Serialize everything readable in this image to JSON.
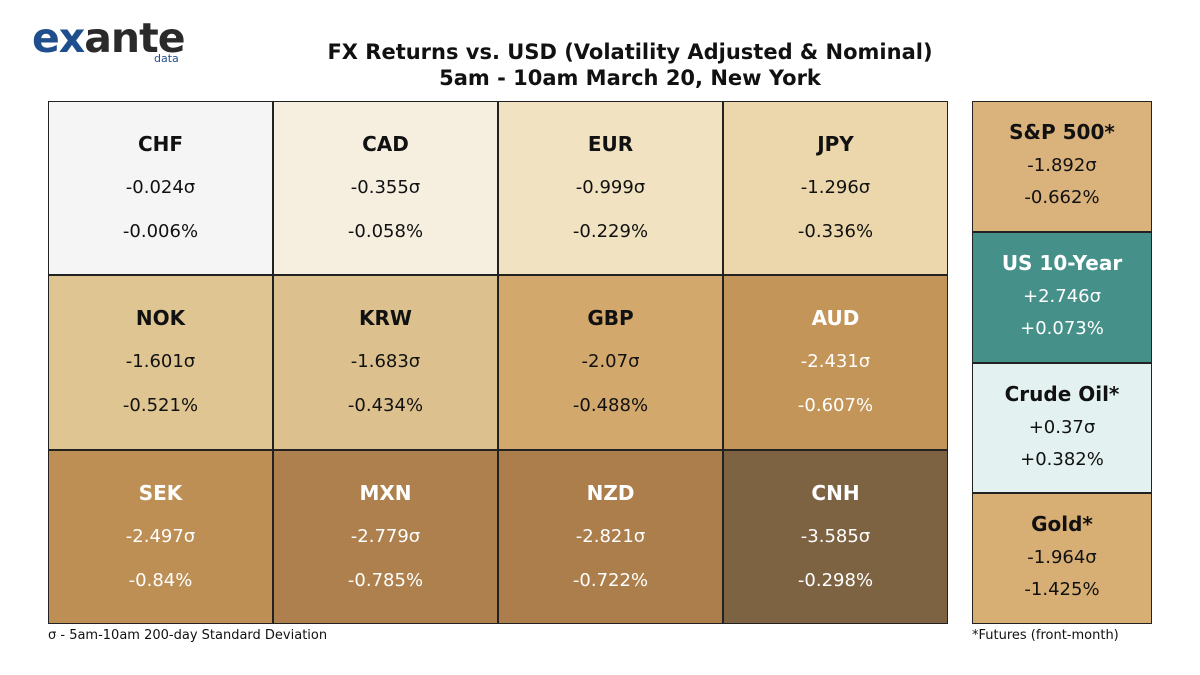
{
  "logo": {
    "word_ex": "ex",
    "word_ante": "ante",
    "sub": "data"
  },
  "title": {
    "line1": "FX Returns vs. USD (Volatility Adjusted & Nominal)",
    "line2": "5am - 10am March 20, New York"
  },
  "chart_data": {
    "type": "table",
    "title": "FX Returns vs. USD (Volatility Adjusted & Nominal)",
    "subtitle": "5am - 10am March 20, New York",
    "fx": [
      {
        "name": "CHF",
        "sigma": "-0.024σ",
        "pct": "-0.006%",
        "sigma_value": -0.024,
        "pct_value": -0.006,
        "bg": "#f5f5f5",
        "fg": "#111111"
      },
      {
        "name": "CAD",
        "sigma": "-0.355σ",
        "pct": "-0.058%",
        "sigma_value": -0.355,
        "pct_value": -0.058,
        "bg": "#f6efe0",
        "fg": "#111111"
      },
      {
        "name": "EUR",
        "sigma": "-0.999σ",
        "pct": "-0.229%",
        "sigma_value": -0.999,
        "pct_value": -0.229,
        "bg": "#f1e2c1",
        "fg": "#111111"
      },
      {
        "name": "JPY",
        "sigma": "-1.296σ",
        "pct": "-0.336%",
        "sigma_value": -1.296,
        "pct_value": -0.336,
        "bg": "#ebd7ab",
        "fg": "#111111"
      },
      {
        "name": "NOK",
        "sigma": "-1.601σ",
        "pct": "-0.521%",
        "sigma_value": -1.601,
        "pct_value": -0.521,
        "bg": "#dfc592",
        "fg": "#111111"
      },
      {
        "name": "KRW",
        "sigma": "-1.683σ",
        "pct": "-0.434%",
        "sigma_value": -1.683,
        "pct_value": -0.434,
        "bg": "#dcc18f",
        "fg": "#111111"
      },
      {
        "name": "GBP",
        "sigma": "-2.07σ",
        "pct": "-0.488%",
        "sigma_value": -2.07,
        "pct_value": -0.488,
        "bg": "#d2a86c",
        "fg": "#111111"
      },
      {
        "name": "AUD",
        "sigma": "-2.431σ",
        "pct": "-0.607%",
        "sigma_value": -2.431,
        "pct_value": -0.607,
        "bg": "#c39558",
        "fg": "#ffffff"
      },
      {
        "name": "SEK",
        "sigma": "-2.497σ",
        "pct": "-0.84%",
        "sigma_value": -2.497,
        "pct_value": -0.84,
        "bg": "#bd8f55",
        "fg": "#ffffff"
      },
      {
        "name": "MXN",
        "sigma": "-2.779σ",
        "pct": "-0.785%",
        "sigma_value": -2.779,
        "pct_value": -0.785,
        "bg": "#ad804d",
        "fg": "#ffffff"
      },
      {
        "name": "NZD",
        "sigma": "-2.821σ",
        "pct": "-0.722%",
        "sigma_value": -2.821,
        "pct_value": -0.722,
        "bg": "#ab7e4b",
        "fg": "#ffffff"
      },
      {
        "name": "CNH",
        "sigma": "-3.585σ",
        "pct": "-0.298%",
        "sigma_value": -3.585,
        "pct_value": -0.298,
        "bg": "#7e6343",
        "fg": "#ffffff"
      }
    ],
    "other": [
      {
        "name": "S&P 500*",
        "sigma": "-1.892σ",
        "pct": "-0.662%",
        "sigma_value": -1.892,
        "pct_value": -0.662,
        "bg": "#d9b27c",
        "fg": "#111111"
      },
      {
        "name": "US 10-Year",
        "sigma": "+2.746σ",
        "pct": "+0.073%",
        "sigma_value": 2.746,
        "pct_value": 0.073,
        "bg": "#459089",
        "fg": "#ffffff"
      },
      {
        "name": "Crude Oil*",
        "sigma": "+0.37σ",
        "pct": "+0.382%",
        "sigma_value": 0.37,
        "pct_value": 0.382,
        "bg": "#e3f2f0",
        "fg": "#111111"
      },
      {
        "name": "Gold*",
        "sigma": "-1.964σ",
        "pct": "-1.425%",
        "sigma_value": -1.964,
        "pct_value": -1.425,
        "bg": "#d7ae74",
        "fg": "#111111"
      }
    ]
  },
  "footnotes": {
    "left": "σ - 5am-10am 200-day Standard Deviation",
    "right": "*Futures (front-month)"
  }
}
